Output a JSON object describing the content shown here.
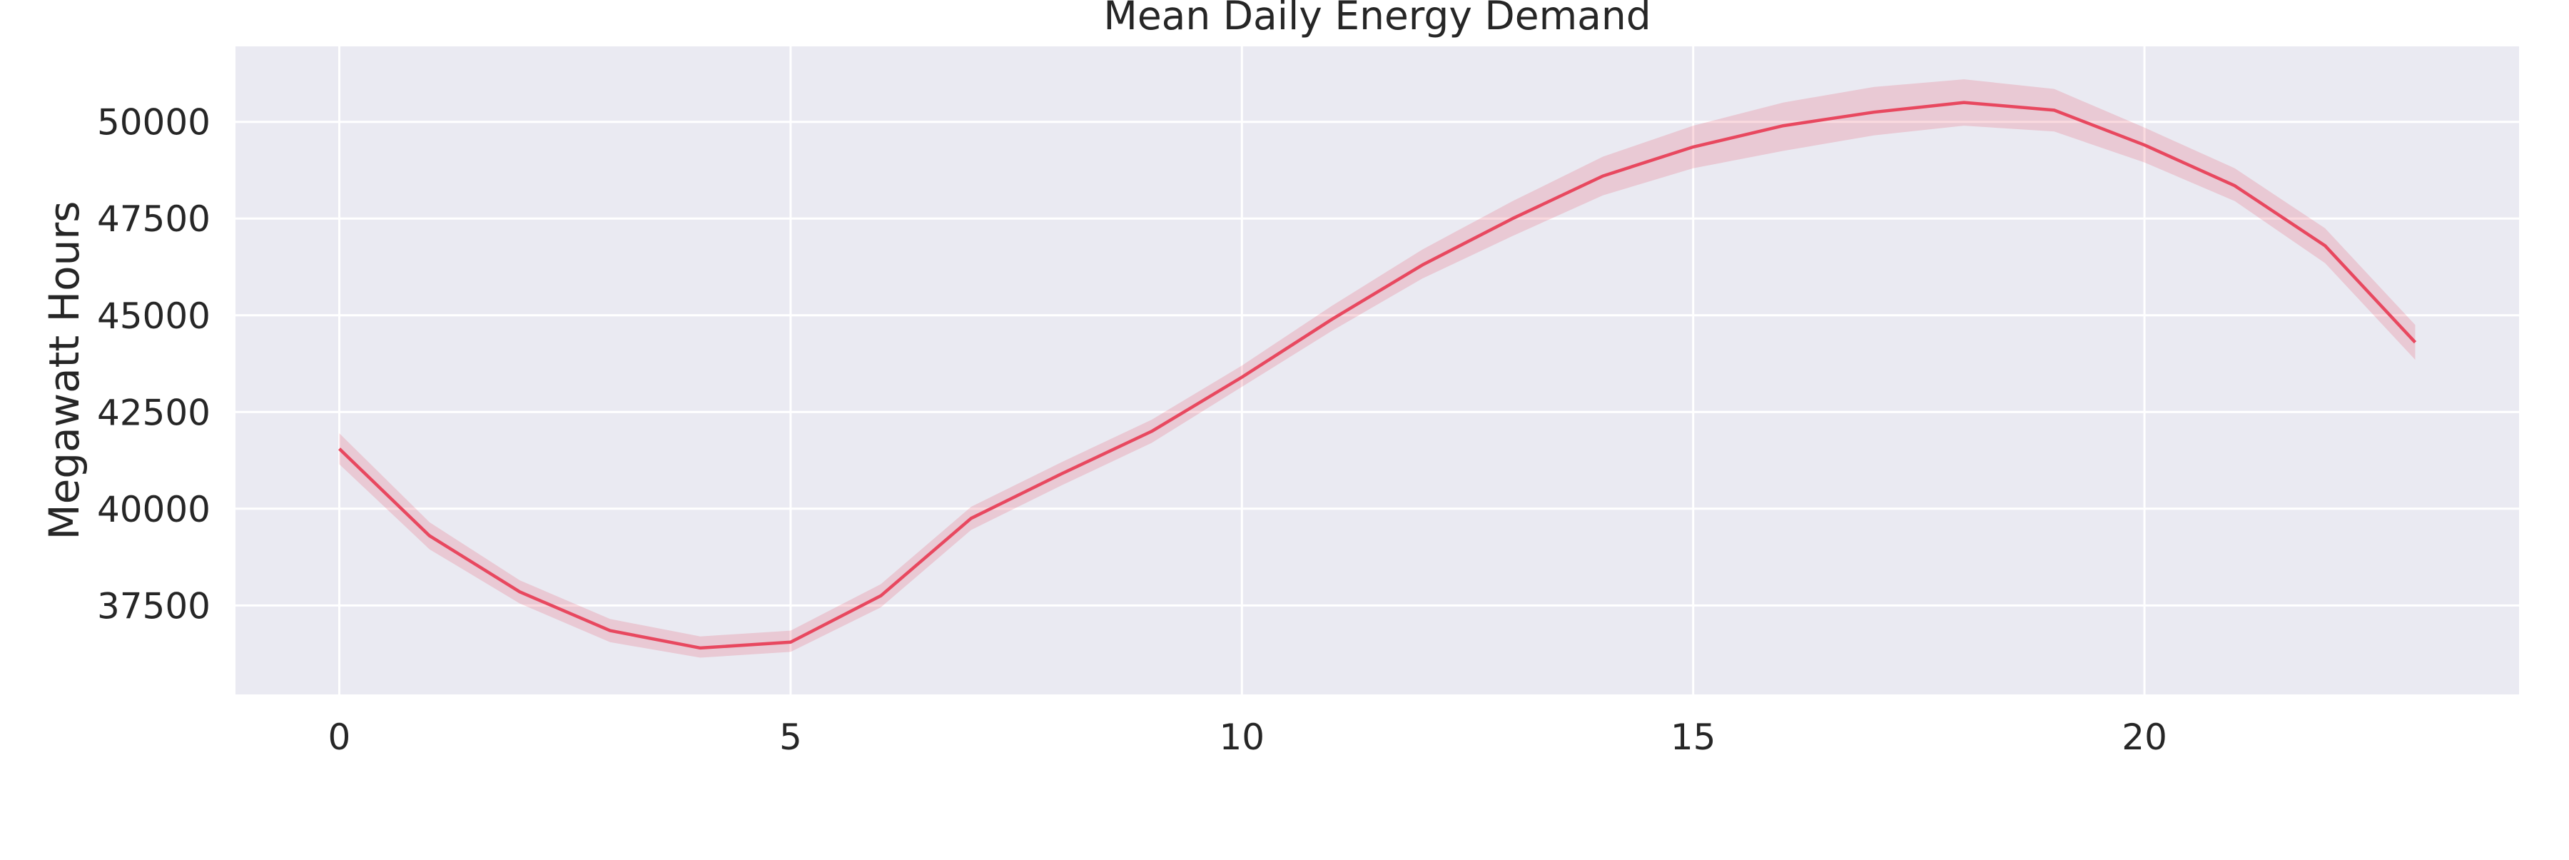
{
  "chart_data": {
    "type": "line",
    "title": "Mean Daily Energy Demand",
    "xlabel": "",
    "ylabel": "Megawatt Hours",
    "xlim": [
      -1.15,
      24.15
    ],
    "ylim": [
      35200,
      51950
    ],
    "xticks": [
      0,
      5,
      10,
      15,
      20
    ],
    "yticks": [
      37500,
      40000,
      42500,
      45000,
      47500,
      50000
    ],
    "grid": true,
    "style": {
      "background": "#eaeaf2",
      "grid_color": "#ffffff",
      "line_color": "#e8485f",
      "band_color": "#e8485f"
    },
    "series": [
      {
        "x": [
          0,
          1,
          2,
          3,
          4,
          5,
          6,
          7,
          8,
          9,
          10,
          11,
          12,
          13,
          14,
          15,
          16,
          17,
          18,
          19,
          20,
          21,
          22,
          23
        ],
        "y": [
          41550,
          39300,
          37850,
          36850,
          36400,
          36550,
          37750,
          39750,
          40900,
          42000,
          43400,
          44900,
          46300,
          47500,
          48600,
          49350,
          49900,
          50250,
          50500,
          50300,
          49400,
          48350,
          46800,
          44300
        ],
        "ci_low": [
          41150,
          38950,
          37550,
          36550,
          36150,
          36300,
          37450,
          39450,
          40600,
          41700,
          43150,
          44600,
          45950,
          47050,
          48100,
          48800,
          49250,
          49650,
          49900,
          49750,
          48950,
          47950,
          46350,
          43850
        ],
        "ci_high": [
          41950,
          39650,
          38150,
          37150,
          36700,
          36850,
          38050,
          40050,
          41200,
          42300,
          43700,
          45250,
          46700,
          47950,
          49100,
          49900,
          50500,
          50900,
          51100,
          50850,
          49850,
          48800,
          47250,
          44750
        ]
      }
    ]
  }
}
